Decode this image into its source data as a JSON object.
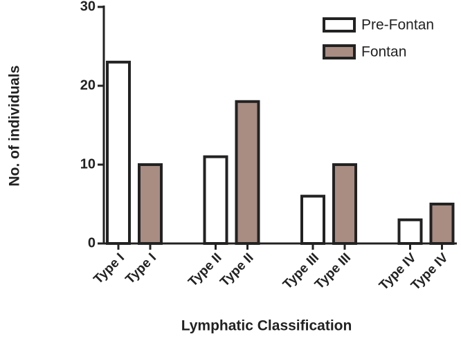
{
  "chart_data": {
    "type": "bar",
    "categories": [
      "Type I",
      "Type II",
      "Type III",
      "Type IV"
    ],
    "series": [
      {
        "name": "Pre-Fontan",
        "color": "#ffffff",
        "values": [
          23,
          11,
          6,
          3
        ]
      },
      {
        "name": "Fontan",
        "color": "#a98c82",
        "values": [
          10,
          18,
          10,
          5
        ]
      }
    ],
    "ylim": [
      0,
      30
    ],
    "yticks": [
      0,
      10,
      20,
      30
    ],
    "x_label": "Lymphatic Classification",
    "y_label": "No. of individuals",
    "legend": "upper right"
  }
}
